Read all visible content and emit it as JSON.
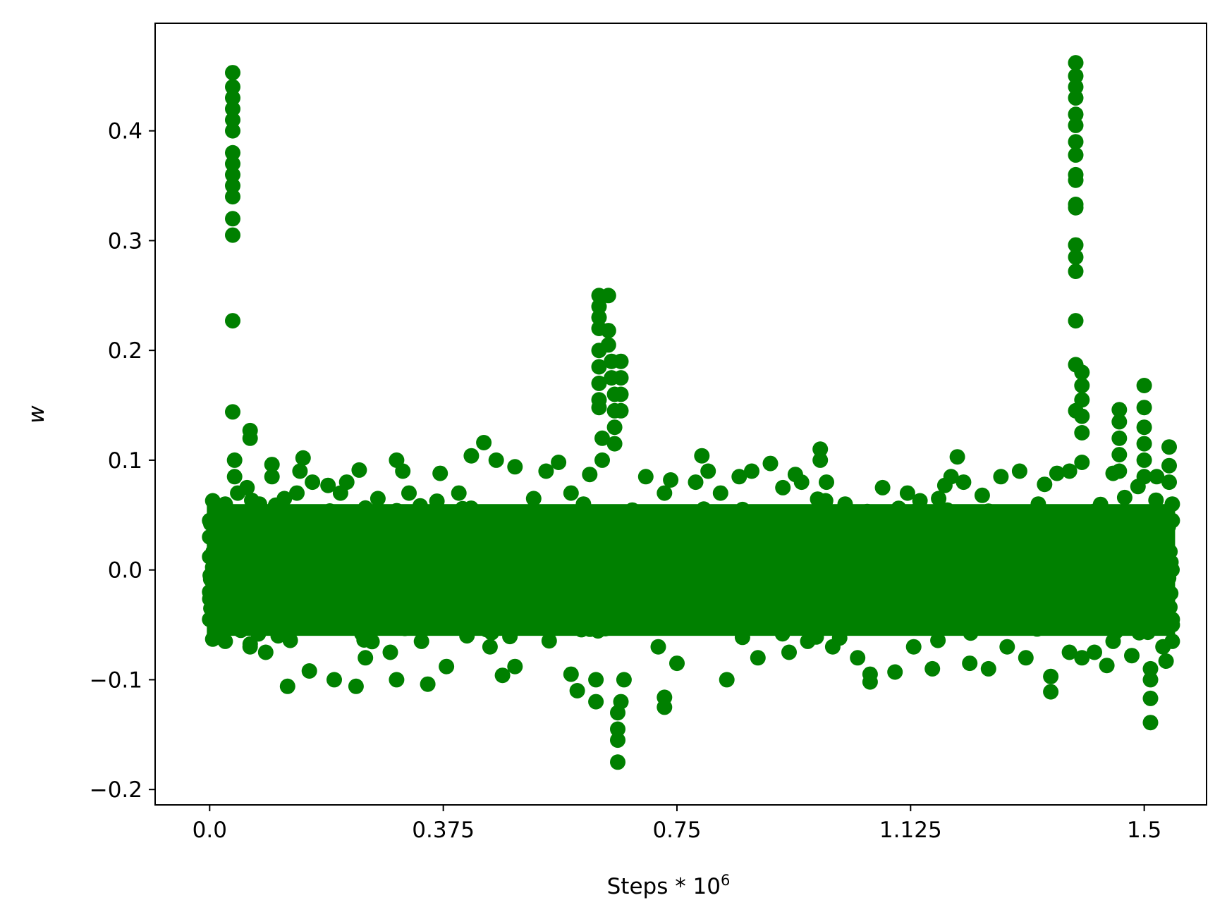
{
  "chart_data": {
    "type": "scatter",
    "xlabel": "Steps * 10",
    "xlabel_superscript": "6",
    "ylabel": "w",
    "xlim": [
      -0.0875,
      1.6
    ],
    "ylim": [
      -0.214,
      0.498
    ],
    "x_ticks": [
      0.0,
      0.375,
      0.75,
      1.125,
      1.5
    ],
    "x_tick_labels": [
      "0.0",
      "0.375",
      "0.75",
      "1.125",
      "1.5"
    ],
    "y_ticks": [
      -0.2,
      -0.1,
      0.0,
      0.1,
      0.2,
      0.3,
      0.4
    ],
    "y_tick_labels": [
      "−0.2",
      "−0.1",
      "0.0",
      "0.1",
      "0.2",
      "0.3",
      "0.4"
    ],
    "grid": false,
    "legend": "none",
    "marker_color": "#008000",
    "series": [
      {
        "points": [
          [
            0.0,
            0.012
          ],
          [
            0.0,
            -0.02
          ],
          [
            0.0,
            0.045
          ],
          [
            0.0,
            -0.045
          ],
          [
            0.0,
            0.03
          ],
          [
            0.002,
            -0.035
          ],
          [
            0.005,
            0.063
          ],
          [
            0.005,
            -0.063
          ],
          [
            0.01,
            0.05
          ],
          [
            0.015,
            -0.05
          ],
          [
            0.025,
            0.06
          ],
          [
            0.025,
            -0.065
          ],
          [
            0.03,
            0.04
          ],
          [
            0.035,
            -0.04
          ],
          [
            0.037,
            0.453
          ],
          [
            0.037,
            0.44
          ],
          [
            0.037,
            0.43
          ],
          [
            0.037,
            0.42
          ],
          [
            0.037,
            0.41
          ],
          [
            0.037,
            0.4
          ],
          [
            0.037,
            0.38
          ],
          [
            0.037,
            0.37
          ],
          [
            0.037,
            0.36
          ],
          [
            0.037,
            0.35
          ],
          [
            0.037,
            0.34
          ],
          [
            0.037,
            0.32
          ],
          [
            0.037,
            0.305
          ],
          [
            0.037,
            0.227
          ],
          [
            0.037,
            0.144
          ],
          [
            0.04,
            0.1
          ],
          [
            0.04,
            0.085
          ],
          [
            0.045,
            0.07
          ],
          [
            0.05,
            -0.055
          ],
          [
            0.06,
            0.075
          ],
          [
            0.065,
            0.127
          ],
          [
            0.065,
            0.12
          ],
          [
            0.065,
            -0.07
          ],
          [
            0.08,
            0.06
          ],
          [
            0.09,
            -0.075
          ],
          [
            0.1,
            0.096
          ],
          [
            0.1,
            0.085
          ],
          [
            0.11,
            -0.06
          ],
          [
            0.12,
            0.065
          ],
          [
            0.125,
            -0.106
          ],
          [
            0.14,
            0.07
          ],
          [
            0.145,
            0.09
          ],
          [
            0.15,
            0.102
          ],
          [
            0.16,
            -0.092
          ],
          [
            0.165,
            0.08
          ],
          [
            0.17,
            -0.05
          ],
          [
            0.19,
            0.077
          ],
          [
            0.2,
            -0.1
          ],
          [
            0.21,
            0.07
          ],
          [
            0.22,
            0.08
          ],
          [
            0.235,
            -0.106
          ],
          [
            0.24,
            0.091
          ],
          [
            0.25,
            -0.08
          ],
          [
            0.27,
            0.065
          ],
          [
            0.29,
            -0.075
          ],
          [
            0.3,
            0.1
          ],
          [
            0.31,
            0.09
          ],
          [
            0.3,
            -0.1
          ],
          [
            0.32,
            0.07
          ],
          [
            0.34,
            -0.065
          ],
          [
            0.35,
            -0.104
          ],
          [
            0.37,
            0.088
          ],
          [
            0.38,
            -0.088
          ],
          [
            0.4,
            0.07
          ],
          [
            0.42,
            0.104
          ],
          [
            0.44,
            0.116
          ],
          [
            0.45,
            -0.07
          ],
          [
            0.46,
            0.1
          ],
          [
            0.47,
            -0.096
          ],
          [
            0.49,
            0.094
          ],
          [
            0.49,
            -0.088
          ],
          [
            0.52,
            0.065
          ],
          [
            0.54,
            0.09
          ],
          [
            0.56,
            0.098
          ],
          [
            0.58,
            0.07
          ],
          [
            0.58,
            -0.095
          ],
          [
            0.59,
            -0.11
          ],
          [
            0.6,
            0.06
          ],
          [
            0.61,
            0.087
          ],
          [
            0.62,
            -0.1
          ],
          [
            0.62,
            -0.12
          ],
          [
            0.625,
            0.25
          ],
          [
            0.625,
            0.24
          ],
          [
            0.625,
            0.23
          ],
          [
            0.625,
            0.22
          ],
          [
            0.625,
            0.2
          ],
          [
            0.625,
            0.185
          ],
          [
            0.625,
            0.17
          ],
          [
            0.625,
            0.155
          ],
          [
            0.625,
            0.148
          ],
          [
            0.63,
            0.12
          ],
          [
            0.63,
            0.1
          ],
          [
            0.64,
            0.25
          ],
          [
            0.64,
            0.218
          ],
          [
            0.64,
            0.205
          ],
          [
            0.645,
            0.19
          ],
          [
            0.645,
            0.175
          ],
          [
            0.65,
            0.16
          ],
          [
            0.65,
            0.145
          ],
          [
            0.65,
            0.13
          ],
          [
            0.65,
            0.115
          ],
          [
            0.66,
            0.19
          ],
          [
            0.66,
            0.175
          ],
          [
            0.66,
            0.16
          ],
          [
            0.66,
            0.145
          ],
          [
            0.655,
            -0.13
          ],
          [
            0.655,
            -0.145
          ],
          [
            0.655,
            -0.155
          ],
          [
            0.655,
            -0.175
          ],
          [
            0.66,
            -0.12
          ],
          [
            0.665,
            -0.1
          ],
          [
            0.7,
            0.085
          ],
          [
            0.72,
            -0.07
          ],
          [
            0.73,
            0.07
          ],
          [
            0.73,
            -0.116
          ],
          [
            0.73,
            -0.125
          ],
          [
            0.74,
            0.082
          ],
          [
            0.75,
            -0.085
          ],
          [
            0.78,
            0.08
          ],
          [
            0.79,
            0.104
          ],
          [
            0.8,
            0.09
          ],
          [
            0.82,
            0.07
          ],
          [
            0.83,
            -0.1
          ],
          [
            0.85,
            0.085
          ],
          [
            0.87,
            0.09
          ],
          [
            0.88,
            -0.08
          ],
          [
            0.9,
            0.097
          ],
          [
            0.92,
            0.075
          ],
          [
            0.93,
            -0.075
          ],
          [
            0.94,
            0.087
          ],
          [
            0.95,
            0.08
          ],
          [
            0.96,
            -0.065
          ],
          [
            0.98,
            0.11
          ],
          [
            0.98,
            0.1
          ],
          [
            0.99,
            0.08
          ],
          [
            1.0,
            -0.07
          ],
          [
            1.02,
            0.06
          ],
          [
            1.04,
            -0.08
          ],
          [
            1.06,
            -0.095
          ],
          [
            1.06,
            -0.102
          ],
          [
            1.08,
            0.075
          ],
          [
            1.09,
            0.05
          ],
          [
            1.1,
            -0.093
          ],
          [
            1.12,
            0.07
          ],
          [
            1.13,
            -0.07
          ],
          [
            1.14,
            0.063
          ],
          [
            1.16,
            -0.09
          ],
          [
            1.17,
            0.065
          ],
          [
            1.18,
            0.077
          ],
          [
            1.19,
            0.085
          ],
          [
            1.2,
            0.103
          ],
          [
            1.21,
            0.08
          ],
          [
            1.22,
            -0.085
          ],
          [
            1.24,
            0.068
          ],
          [
            1.25,
            -0.09
          ],
          [
            1.27,
            0.085
          ],
          [
            1.28,
            -0.07
          ],
          [
            1.3,
            0.09
          ],
          [
            1.31,
            -0.08
          ],
          [
            1.33,
            0.06
          ],
          [
            1.34,
            0.078
          ],
          [
            1.35,
            -0.111
          ],
          [
            1.35,
            -0.097
          ],
          [
            1.36,
            0.088
          ],
          [
            1.38,
            0.09
          ],
          [
            1.38,
            -0.075
          ],
          [
            1.39,
            0.462
          ],
          [
            1.39,
            0.45
          ],
          [
            1.39,
            0.44
          ],
          [
            1.39,
            0.43
          ],
          [
            1.39,
            0.415
          ],
          [
            1.39,
            0.405
          ],
          [
            1.39,
            0.39
          ],
          [
            1.39,
            0.378
          ],
          [
            1.39,
            0.36
          ],
          [
            1.39,
            0.355
          ],
          [
            1.39,
            0.333
          ],
          [
            1.39,
            0.33
          ],
          [
            1.39,
            0.296
          ],
          [
            1.39,
            0.285
          ],
          [
            1.39,
            0.272
          ],
          [
            1.39,
            0.227
          ],
          [
            1.39,
            0.187
          ],
          [
            1.39,
            0.145
          ],
          [
            1.4,
            0.18
          ],
          [
            1.4,
            0.168
          ],
          [
            1.4,
            0.155
          ],
          [
            1.4,
            0.14
          ],
          [
            1.4,
            0.125
          ],
          [
            1.4,
            0.098
          ],
          [
            1.4,
            -0.08
          ],
          [
            1.42,
            -0.075
          ],
          [
            1.44,
            -0.087
          ],
          [
            1.45,
            0.088
          ],
          [
            1.45,
            -0.065
          ],
          [
            1.46,
            0.146
          ],
          [
            1.46,
            0.135
          ],
          [
            1.46,
            0.12
          ],
          [
            1.46,
            0.105
          ],
          [
            1.46,
            0.09
          ],
          [
            1.48,
            -0.078
          ],
          [
            1.49,
            0.076
          ],
          [
            1.5,
            0.168
          ],
          [
            1.5,
            0.148
          ],
          [
            1.5,
            0.13
          ],
          [
            1.5,
            0.115
          ],
          [
            1.5,
            0.1
          ],
          [
            1.5,
            0.085
          ],
          [
            1.51,
            -0.1
          ],
          [
            1.51,
            -0.117
          ],
          [
            1.51,
            -0.139
          ],
          [
            1.51,
            -0.09
          ],
          [
            1.52,
            0.085
          ],
          [
            1.53,
            -0.07
          ],
          [
            1.535,
            -0.083
          ],
          [
            1.54,
            0.112
          ],
          [
            1.54,
            0.095
          ],
          [
            1.54,
            0.08
          ],
          [
            1.545,
            0.06
          ],
          [
            1.545,
            0.045
          ],
          [
            1.545,
            -0.045
          ],
          [
            1.545,
            -0.065
          ],
          [
            1.545,
            -0.05
          ]
        ]
      }
    ]
  }
}
